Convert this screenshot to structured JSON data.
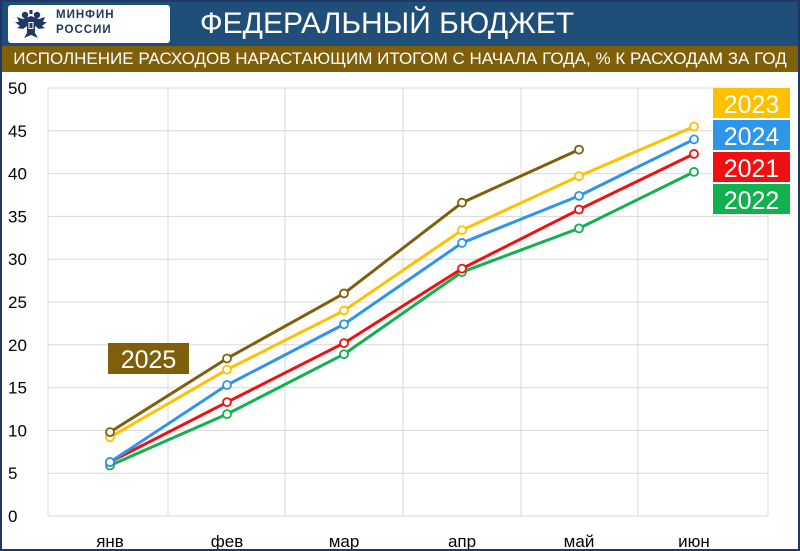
{
  "header": {
    "logo_line1": "МИНФИН",
    "logo_line2": "РОССИИ",
    "title": "ФЕДЕРАЛЬНЫЙ БЮДЖЕТ",
    "subtitle": "ИСПОЛНЕНИЕ РАСХОДОВ НАРАСТАЮЩИМ ИТОГОМ С НАЧАЛА ГОДА, % К РАСХОДАМ ЗА ГОД"
  },
  "colors": {
    "header_bg": "#1f4e79",
    "subtitle_bg": "#7f5f0a",
    "grid": "#d9d9d9",
    "series_2025": "#7f5f0a",
    "series_2023": "#ffc000",
    "series_2024": "#2e95e8",
    "series_2021": "#ee1111",
    "series_2022": "#13b050"
  },
  "chart_data": {
    "type": "line",
    "title": "ИСПОЛНЕНИЕ РАСХОДОВ НАРАСТАЮЩИМ ИТОГОМ С НАЧАЛА ГОДА, % К РАСХОДАМ ЗА ГОД",
    "categories": [
      "янв",
      "фев",
      "мар",
      "апр",
      "май",
      "июн"
    ],
    "ylim": [
      0,
      50
    ],
    "yticks": [
      0,
      5,
      10,
      15,
      20,
      25,
      30,
      35,
      40,
      45,
      50
    ],
    "grid": true,
    "series": [
      {
        "name": "2021",
        "color": "#ee1111",
        "values": [
          6.3,
          13.3,
          20.2,
          28.9,
          35.8,
          42.3
        ]
      },
      {
        "name": "2022",
        "color": "#13b050",
        "values": [
          5.9,
          11.9,
          18.9,
          28.5,
          33.6,
          40.2
        ]
      },
      {
        "name": "2023",
        "color": "#ffc000",
        "values": [
          9.2,
          17.1,
          24.0,
          33.4,
          39.7,
          45.5
        ]
      },
      {
        "name": "2024",
        "color": "#2e95e8",
        "values": [
          6.3,
          15.3,
          22.4,
          31.9,
          37.4,
          44.0
        ]
      },
      {
        "name": "2025",
        "color": "#7f5f0a",
        "values": [
          9.8,
          18.4,
          26.0,
          36.6,
          42.8,
          null
        ]
      }
    ],
    "legend": {
      "placement": "right",
      "entries": [
        "2023",
        "2024",
        "2021",
        "2022"
      ],
      "inline_label": "2025"
    }
  }
}
